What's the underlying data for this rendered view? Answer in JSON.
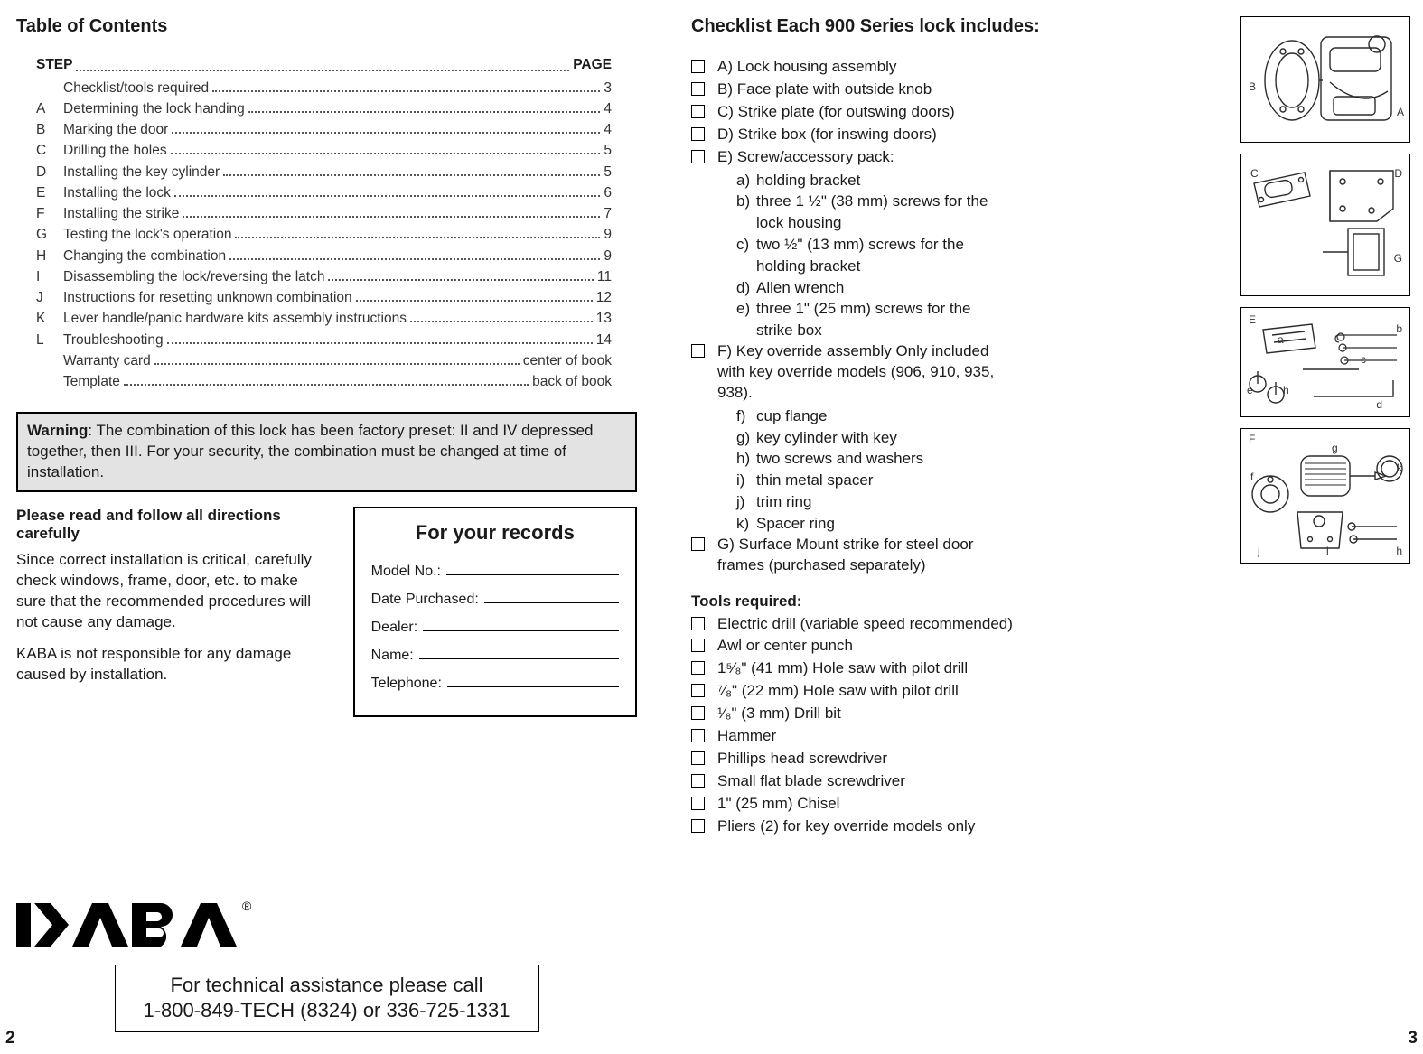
{
  "left_page": {
    "toc_title": "Table of Contents",
    "toc_head_step": "STEP",
    "toc_head_page": "PAGE",
    "toc": [
      {
        "letter": "",
        "title": "Checklist/tools required",
        "page": "3"
      },
      {
        "letter": "A",
        "title": "Determining the lock handing",
        "page": "4"
      },
      {
        "letter": "B",
        "title": "Marking the door",
        "page": "4"
      },
      {
        "letter": "C",
        "title": "Drilling the holes",
        "page": "5"
      },
      {
        "letter": "D",
        "title": "Installing the key cylinder",
        "page": "5"
      },
      {
        "letter": "E",
        "title": "Installing the lock",
        "page": "6"
      },
      {
        "letter": "F",
        "title": "Installing the strike",
        "page": "7"
      },
      {
        "letter": "G",
        "title": "Testing the lock's operation",
        "page": "9"
      },
      {
        "letter": "H",
        "title": "Changing the combination",
        "page": "9"
      },
      {
        "letter": "I",
        "title": "Disassembling the lock/reversing the latch",
        "page": "11"
      },
      {
        "letter": "J",
        "title": "Instructions for resetting unknown combination",
        "page": "12"
      },
      {
        "letter": "K",
        "title": "Lever handle/panic hardware kits assembly instructions",
        "page": "13"
      },
      {
        "letter": "L",
        "title": "Troubleshooting",
        "page": "14"
      },
      {
        "letter": "",
        "title": "Warranty card",
        "page": "center of book"
      },
      {
        "letter": "",
        "title": "Template",
        "page": "back of book"
      }
    ],
    "warning_label": "Warning",
    "warning_text": ": The combination of this lock has been factory preset: II and IV depressed together, then III.  For your security, the combination must be changed at time of installation.",
    "directions_head": "Please read and follow all directions carefully",
    "directions_p1": "Since correct installation is critical, carefully check windows, frame, door, etc. to make sure that the recommended procedures will not cause any damage.",
    "directions_p2": "KABA is not responsible for any damage caused by installation.",
    "records_title": "For your records",
    "records_rows": [
      "Model No.:",
      "Date Purchased:",
      "Dealer:",
      "Name:",
      "Telephone:"
    ],
    "assist_line1": "For technical assistance please call",
    "assist_line2": "1-800-849-TECH (8324) or 336-725-1331",
    "page_number": "2"
  },
  "right_page": {
    "checklist_title": "Checklist Each 900 Series lock includes:",
    "items": [
      {
        "label": "A) Lock housing assembly"
      },
      {
        "label": "B) Face plate with outside knob"
      },
      {
        "label": "C) Strike plate (for outswing doors)"
      },
      {
        "label": "D) Strike box (for inswing doors)"
      },
      {
        "label": "E) Screw/accessory pack:",
        "subs": [
          {
            "l": "a)",
            "t": "holding bracket"
          },
          {
            "l": "b)",
            "t": "three 1 ½\" (38 mm) screws for the lock housing"
          },
          {
            "l": "c)",
            "t": "two ½\" (13 mm) screws for the holding bracket"
          },
          {
            "l": "d)",
            "t": "Allen wrench"
          },
          {
            "l": "e)",
            "t": "three 1\" (25 mm) screws for the strike box"
          }
        ]
      },
      {
        "label": "F) Key override assembly Only included with key override models (906, 910, 935, 938).",
        "subs": [
          {
            "l": "f)",
            "t": "cup flange"
          },
          {
            "l": "g)",
            "t": "key cylinder with key"
          },
          {
            "l": "h)",
            "t": "two screws and washers"
          },
          {
            "l": "i)",
            "t": "thin metal spacer"
          },
          {
            "l": "j)",
            "t": "trim ring"
          },
          {
            "l": "k)",
            "t": "Spacer ring"
          }
        ]
      },
      {
        "label": "G) Surface Mount strike for steel door frames (purchased separately)"
      }
    ],
    "tools_title": "Tools required:",
    "tools": [
      "Electric drill (variable speed recommended)",
      "Awl or center punch",
      "1⁵⁄₈\" (41 mm) Hole saw with pilot drill",
      "⁷⁄₈\" (22 mm) Hole saw with pilot drill",
      "¹⁄₈\" (3 mm) Drill bit",
      "Hammer",
      "Phillips head screwdriver",
      "Small flat blade screwdriver",
      "1\" (25 mm) Chisel",
      "Pliers (2) for key override models only"
    ],
    "diagram1_labels": {
      "A": "A",
      "B": "B"
    },
    "diagram2_labels": {
      "C": "C",
      "D": "D",
      "G": "G"
    },
    "diagram3_labels": {
      "E": "E",
      "a": "a",
      "b": "b",
      "c": "c",
      "d": "d",
      "e": "e",
      "h": "h"
    },
    "diagram4_labels": {
      "F": "F",
      "f": "f",
      "g": "g",
      "h": "h",
      "i": "i",
      "j": "j",
      "k": "k"
    },
    "page_number": "3"
  },
  "colors": {
    "text": "#1a1a1a",
    "border": "#000000",
    "warning_bg": "#e3e3e3",
    "dot": "#555555",
    "diagram_stroke": "#2b2b2b"
  }
}
